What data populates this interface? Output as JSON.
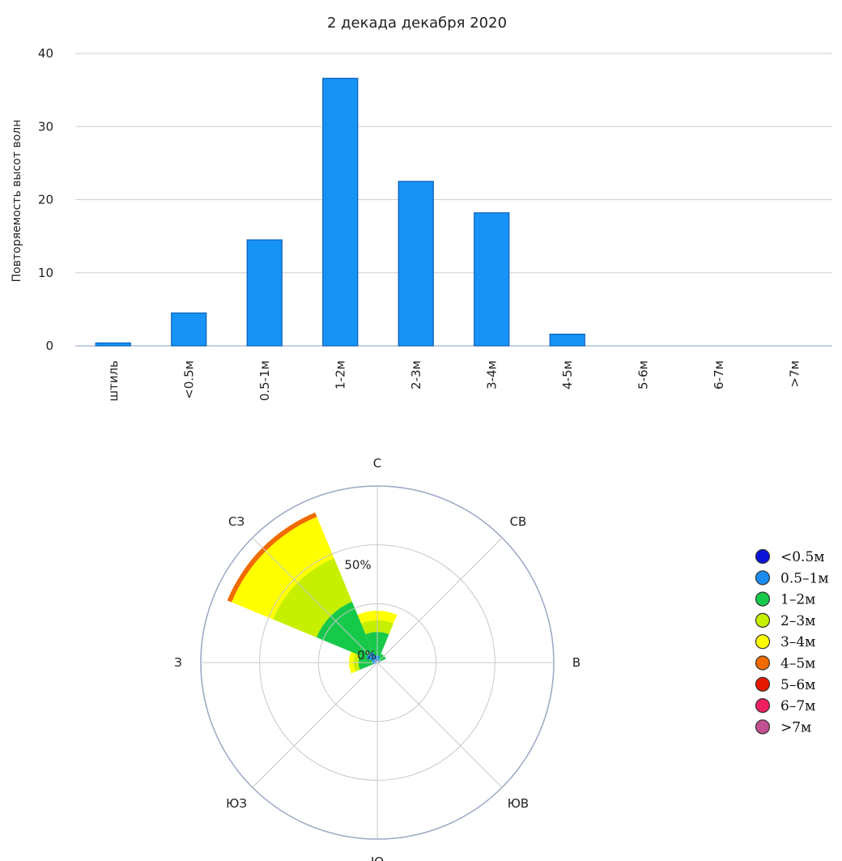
{
  "chart_data": [
    {
      "type": "bar",
      "title": "2 декада декабря 2020",
      "ylabel": "Повторяемость высот волн",
      "xlabel": "",
      "ylim": [
        0,
        40
      ],
      "yticks": [
        0,
        10,
        20,
        30,
        40
      ],
      "grid": true,
      "categories": [
        "штиль",
        "<0.5м",
        "0.5-1м",
        "1-2м",
        "2-3м",
        "3-4м",
        "4-5м",
        "5-6м",
        "6-7м",
        ">7м"
      ],
      "values": [
        0.4,
        4.5,
        14.5,
        36.6,
        22.5,
        18.2,
        1.6,
        0,
        0,
        0
      ],
      "color": "#1793f5"
    },
    {
      "type": "rose",
      "directions": [
        "С",
        "СВ",
        "В",
        "ЮВ",
        "Ю",
        "ЮЗ",
        "З",
        "СЗ"
      ],
      "rlim": [
        0,
        75
      ],
      "ring_labels": [
        "0%",
        "50%"
      ],
      "legend": {
        "position": "right",
        "items": [
          {
            "label": "<0.5м",
            "color": "#0a14d8"
          },
          {
            "label": "0.5–1м",
            "color": "#1a8cf0"
          },
          {
            "label": "1–2м",
            "color": "#17c94a"
          },
          {
            "label": "2–3м",
            "color": "#c6f000"
          },
          {
            "label": "3–4м",
            "color": "#ffff00"
          },
          {
            "label": "4–5м",
            "color": "#f06a00"
          },
          {
            "label": "5–6м",
            "color": "#e61800"
          },
          {
            "label": "6–7м",
            "color": "#f02060"
          },
          {
            "label": ">7м",
            "color": "#c05090"
          }
        ]
      },
      "series": [
        {
          "direction": "С",
          "cumulative": [
            0.5,
            3,
            13,
            18,
            22,
            22,
            22,
            22,
            22
          ]
        },
        {
          "direction": "СВ",
          "cumulative": [
            0.3,
            1.5,
            4,
            4,
            4,
            4,
            4,
            4,
            4
          ]
        },
        {
          "direction": "В",
          "cumulative": [
            0,
            0.5,
            1,
            1,
            1,
            1,
            1,
            1,
            1
          ]
        },
        {
          "direction": "ЮВ",
          "cumulative": [
            0,
            0,
            0,
            0,
            0,
            0,
            0,
            0,
            0
          ]
        },
        {
          "direction": "Ю",
          "cumulative": [
            0,
            0,
            0,
            0,
            0,
            0,
            0,
            0,
            0
          ]
        },
        {
          "direction": "ЮЗ",
          "cumulative": [
            0,
            0,
            0,
            0,
            0,
            0,
            0,
            0,
            0
          ]
        },
        {
          "direction": "З",
          "cumulative": [
            0.3,
            2,
            8,
            10,
            12,
            12,
            12,
            12,
            12
          ]
        },
        {
          "direction": "СЗ",
          "cumulative": [
            0.5,
            5,
            28,
            48,
            67,
            69,
            69,
            69,
            69
          ]
        }
      ]
    }
  ]
}
